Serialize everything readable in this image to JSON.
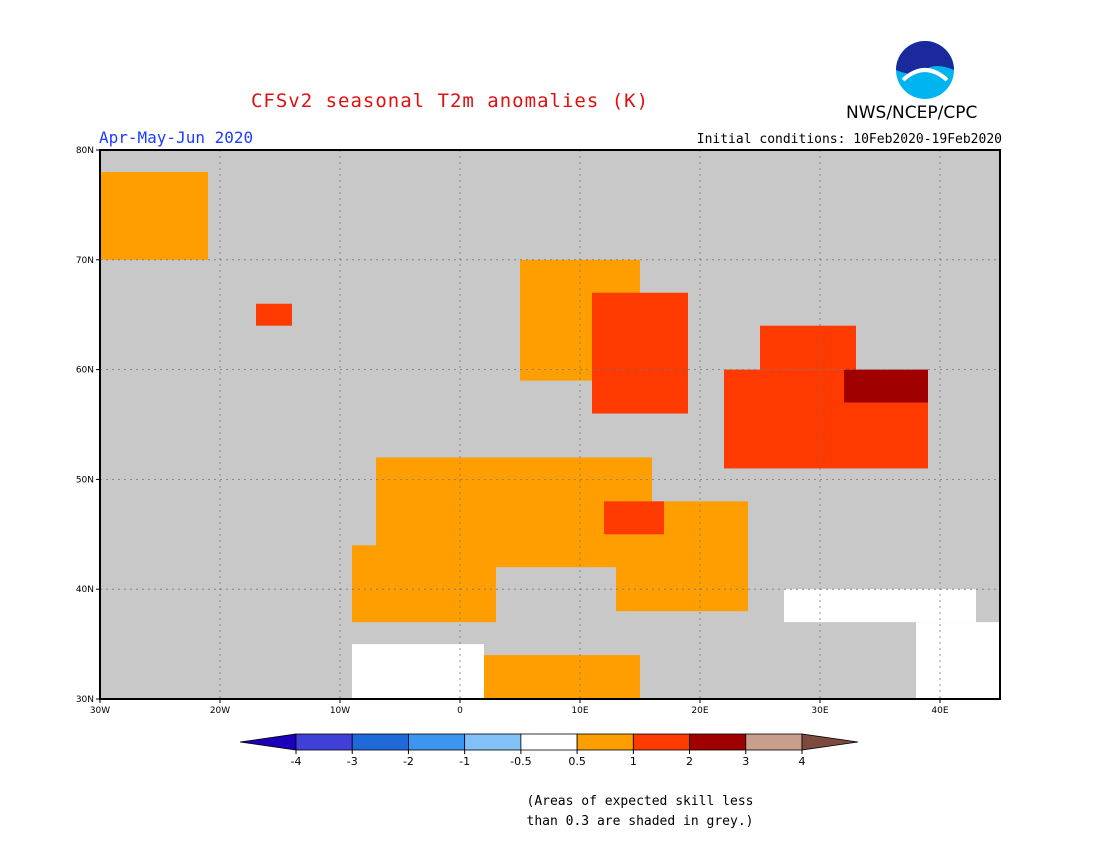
{
  "title": "CFSv2 seasonal T2m anomalies (K)",
  "season": "Apr-May-Jun 2020",
  "initial_conditions": "Initial conditions: 10Feb2020-19Feb2020",
  "agency": "NWS/NCEP/CPC",
  "logo_text": "NOAA",
  "footnote_line1": "(Areas of expected skill less",
  "footnote_line2": "than 0.3 are shaded in grey.)",
  "map": {
    "lon_range": [
      -30,
      45
    ],
    "lat_range": [
      30,
      80
    ],
    "lon_ticks": [
      {
        "v": -30,
        "label": "30W"
      },
      {
        "v": -20,
        "label": "20W"
      },
      {
        "v": -10,
        "label": "10W"
      },
      {
        "v": 0,
        "label": "0"
      },
      {
        "v": 10,
        "label": "10E"
      },
      {
        "v": 20,
        "label": "20E"
      },
      {
        "v": 30,
        "label": "30E"
      },
      {
        "v": 40,
        "label": "40E"
      }
    ],
    "lat_ticks": [
      {
        "v": 30,
        "label": "30N"
      },
      {
        "v": 40,
        "label": "40N"
      },
      {
        "v": 50,
        "label": "50N"
      },
      {
        "v": 60,
        "label": "60N"
      },
      {
        "v": 70,
        "label": "70N"
      },
      {
        "v": 80,
        "label": "80N"
      }
    ],
    "grey_color": "#c8c8c8",
    "anomaly_regions": [
      {
        "cls": "0.5-1",
        "color": "#ff9e00",
        "region": "western-europe",
        "lon": [
          -7,
          16
        ],
        "lat": [
          42,
          52
        ]
      },
      {
        "cls": "0.5-1",
        "color": "#ff9e00",
        "region": "iberia",
        "lon": [
          -9,
          3
        ],
        "lat": [
          37,
          44
        ]
      },
      {
        "cls": "0.5-1",
        "color": "#ff9e00",
        "region": "north-africa",
        "lon": [
          -1,
          15
        ],
        "lat": [
          30,
          34
        ]
      },
      {
        "cls": "0.5-1",
        "color": "#ff9e00",
        "region": "norway-coast",
        "lon": [
          5,
          15
        ],
        "lat": [
          59,
          70
        ]
      },
      {
        "cls": "0.5-1",
        "color": "#ff9e00",
        "region": "greenland",
        "lon": [
          -30,
          -21
        ],
        "lat": [
          70,
          78
        ]
      },
      {
        "cls": "0.5-1",
        "color": "#ff9e00",
        "region": "balkans",
        "lon": [
          13,
          24
        ],
        "lat": [
          38,
          48
        ]
      },
      {
        "cls": "1-2",
        "color": "#ff3a00",
        "region": "sweden",
        "lon": [
          11,
          19
        ],
        "lat": [
          56,
          67
        ]
      },
      {
        "cls": "1-2",
        "color": "#ff3a00",
        "region": "baltic-russia",
        "lon": [
          22,
          39
        ],
        "lat": [
          51,
          60
        ]
      },
      {
        "cls": "1-2",
        "color": "#ff3a00",
        "region": "finland",
        "lon": [
          25,
          33
        ],
        "lat": [
          60,
          64
        ]
      },
      {
        "cls": "1-2",
        "color": "#ff3a00",
        "region": "alps",
        "lon": [
          12,
          17
        ],
        "lat": [
          45,
          48
        ]
      },
      {
        "cls": "1-2",
        "color": "#ff3a00",
        "region": "iceland-east",
        "lon": [
          -17,
          -14
        ],
        "lat": [
          64,
          66
        ]
      },
      {
        "cls": "2-3",
        "color": "#a00000",
        "region": "western-russia",
        "lon": [
          32,
          39
        ],
        "lat": [
          57,
          60
        ]
      },
      {
        "cls": "-0.5-0.5",
        "color": "#ffffff",
        "region": "turkey",
        "lon": [
          27,
          43
        ],
        "lat": [
          37,
          40
        ]
      },
      {
        "cls": "-0.5-0.5",
        "color": "#ffffff",
        "region": "algeria",
        "lon": [
          -9,
          2
        ],
        "lat": [
          30,
          35
        ]
      },
      {
        "cls": "-0.5-0.5",
        "color": "#ffffff",
        "region": "middle-east",
        "lon": [
          38,
          45
        ],
        "lat": [
          30,
          37
        ]
      }
    ]
  },
  "colorbar": {
    "levels": [
      "-4",
      "-3",
      "-2",
      "-1",
      "-0.5",
      "0.5",
      "1",
      "2",
      "3",
      "4"
    ],
    "colors": [
      "#1a00b8",
      "#4040d8",
      "#1f6ad8",
      "#3c96f0",
      "#82c0f8",
      "#ffffff",
      "#ff9e00",
      "#ff3a00",
      "#a00000",
      "#c89e8c",
      "#7d4a3e"
    ]
  }
}
